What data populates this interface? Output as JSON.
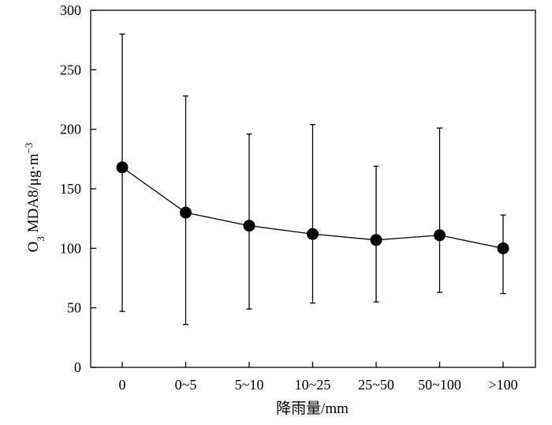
{
  "chart_data": {
    "type": "line",
    "title": "",
    "xlabel": "降雨量/mm",
    "ylabel": {
      "prefix": "O",
      "subscript": "3",
      "middle": " MDA8/μg·m",
      "superscript": "−3"
    },
    "categories": [
      "0",
      "0~5",
      "5~10",
      "10~25",
      "25~50",
      "50~100",
      ">100"
    ],
    "y_ticks": [
      "0",
      "50",
      "100",
      "150",
      "200",
      "250",
      "300"
    ],
    "ylim": [
      0,
      300
    ],
    "grid": false,
    "legend": "none",
    "series": [
      {
        "values": [
          168,
          130,
          119,
          112,
          107,
          111,
          100
        ],
        "error_low": [
          47,
          36,
          49,
          54,
          55,
          63,
          62
        ],
        "error_high": [
          280,
          228,
          196,
          204,
          169,
          201,
          128
        ]
      }
    ],
    "colors": {
      "line": "#000000",
      "marker": "#000000",
      "axis": "#000000"
    }
  }
}
